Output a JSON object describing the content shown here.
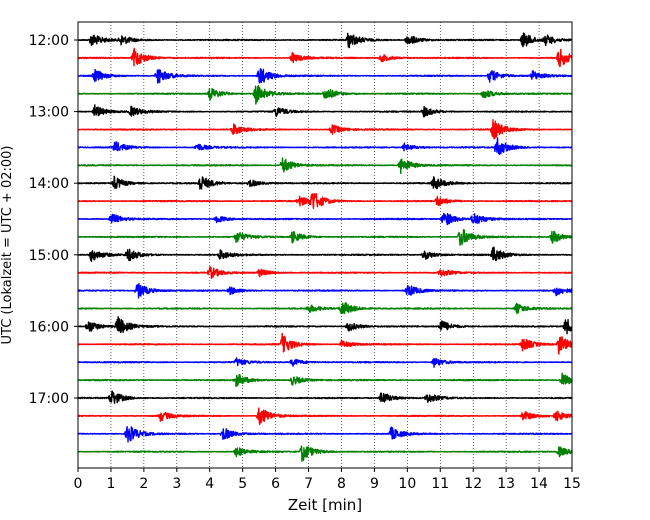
{
  "chart_data": {
    "type": "line",
    "title": "",
    "xlabel": "Zeit  [min]",
    "ylabel": "UTC (Lokalzeit = UTC + 02:00)",
    "xlim": [
      0,
      15
    ],
    "x_ticks": [
      0,
      1,
      2,
      3,
      4,
      5,
      6,
      7,
      8,
      9,
      10,
      11,
      12,
      13,
      14,
      15
    ],
    "grid": "vertical dotted",
    "legend": "none",
    "row_interval_minutes": 15,
    "y_ticks": [
      {
        "label": "12:00",
        "row": 0
      },
      {
        "label": "13:00",
        "row": 4
      },
      {
        "label": "14:00",
        "row": 8
      },
      {
        "label": "15:00",
        "row": 12
      },
      {
        "label": "16:00",
        "row": 16
      },
      {
        "label": "17:00",
        "row": 20
      }
    ],
    "colors": [
      "#000000",
      "#ff0000",
      "#0000ff",
      "#008000"
    ],
    "traces": [
      {
        "start": "12:00",
        "color": "#000000",
        "events": [
          [
            0.4,
            2.0
          ],
          [
            1.3,
            1.5
          ],
          [
            8.2,
            2.5
          ],
          [
            10.0,
            1.8
          ],
          [
            13.5,
            2.5
          ],
          [
            14.2,
            1.5
          ]
        ]
      },
      {
        "start": "12:15",
        "color": "#ff0000",
        "events": [
          [
            1.7,
            3.0
          ],
          [
            6.5,
            1.5
          ],
          [
            9.2,
            1.2
          ],
          [
            14.6,
            3.0
          ]
        ]
      },
      {
        "start": "12:30",
        "color": "#0000ff",
        "events": [
          [
            0.5,
            2.0
          ],
          [
            2.4,
            2.5
          ],
          [
            5.5,
            3.0
          ],
          [
            12.5,
            2.0
          ],
          [
            13.8,
            1.5
          ]
        ]
      },
      {
        "start": "12:45",
        "color": "#008000",
        "events": [
          [
            4.0,
            2.0
          ],
          [
            5.4,
            3.0
          ],
          [
            7.5,
            2.0
          ],
          [
            12.3,
            1.5
          ]
        ]
      },
      {
        "start": "13:00",
        "color": "#000000",
        "events": [
          [
            0.5,
            2.0
          ],
          [
            1.6,
            1.5
          ],
          [
            6.0,
            1.5
          ],
          [
            10.5,
            1.5
          ]
        ]
      },
      {
        "start": "13:15",
        "color": "#ff0000",
        "events": [
          [
            4.7,
            1.8
          ],
          [
            7.7,
            1.5
          ],
          [
            12.6,
            3.0
          ]
        ]
      },
      {
        "start": "13:30",
        "color": "#0000ff",
        "events": [
          [
            1.1,
            1.8
          ],
          [
            3.6,
            1.2
          ],
          [
            9.9,
            1.2
          ],
          [
            12.7,
            3.0
          ]
        ]
      },
      {
        "start": "13:45",
        "color": "#008000",
        "events": [
          [
            6.2,
            2.5
          ],
          [
            9.8,
            2.5
          ]
        ]
      },
      {
        "start": "14:00",
        "color": "#000000",
        "events": [
          [
            1.1,
            2.0
          ],
          [
            3.7,
            2.5
          ],
          [
            5.2,
            1.2
          ],
          [
            10.8,
            2.0
          ]
        ]
      },
      {
        "start": "14:15",
        "color": "#ff0000",
        "events": [
          [
            6.7,
            1.5
          ],
          [
            7.1,
            3.0
          ],
          [
            10.9,
            1.5
          ]
        ]
      },
      {
        "start": "14:30",
        "color": "#0000ff",
        "events": [
          [
            1.0,
            1.8
          ],
          [
            4.2,
            1.2
          ],
          [
            11.1,
            2.5
          ],
          [
            12.0,
            2.0
          ]
        ]
      },
      {
        "start": "14:45",
        "color": "#008000",
        "events": [
          [
            4.8,
            1.8
          ],
          [
            6.5,
            1.8
          ],
          [
            11.6,
            3.0
          ],
          [
            14.4,
            2.0
          ]
        ]
      },
      {
        "start": "15:00",
        "color": "#000000",
        "events": [
          [
            0.4,
            2.0
          ],
          [
            1.5,
            2.0
          ],
          [
            4.3,
            1.5
          ],
          [
            10.5,
            1.5
          ],
          [
            12.6,
            2.5
          ]
        ]
      },
      {
        "start": "15:15",
        "color": "#ff0000",
        "events": [
          [
            4.0,
            1.8
          ],
          [
            5.5,
            1.2
          ],
          [
            11.0,
            1.2
          ]
        ]
      },
      {
        "start": "15:30",
        "color": "#0000ff",
        "events": [
          [
            1.8,
            2.5
          ],
          [
            4.6,
            1.2
          ],
          [
            10.0,
            2.0
          ],
          [
            14.5,
            1.5
          ]
        ]
      },
      {
        "start": "15:45",
        "color": "#008000",
        "events": [
          [
            7.0,
            1.2
          ],
          [
            8.0,
            2.5
          ],
          [
            13.3,
            1.5
          ]
        ]
      },
      {
        "start": "16:00",
        "color": "#000000",
        "events": [
          [
            0.3,
            2.0
          ],
          [
            1.2,
            3.0
          ],
          [
            8.2,
            1.5
          ],
          [
            11.0,
            2.0
          ],
          [
            14.8,
            2.5
          ]
        ]
      },
      {
        "start": "16:15",
        "color": "#ff0000",
        "events": [
          [
            6.2,
            3.0
          ],
          [
            8.0,
            1.2
          ],
          [
            13.5,
            2.0
          ],
          [
            14.6,
            3.0
          ]
        ]
      },
      {
        "start": "16:30",
        "color": "#0000ff",
        "events": [
          [
            4.8,
            1.2
          ],
          [
            6.5,
            1.2
          ],
          [
            10.8,
            1.5
          ]
        ]
      },
      {
        "start": "16:45",
        "color": "#008000",
        "events": [
          [
            4.8,
            2.0
          ],
          [
            6.5,
            1.5
          ],
          [
            14.7,
            2.0
          ]
        ]
      },
      {
        "start": "17:00",
        "color": "#000000",
        "events": [
          [
            1.0,
            2.5
          ],
          [
            9.2,
            2.0
          ],
          [
            10.6,
            1.5
          ]
        ]
      },
      {
        "start": "17:15",
        "color": "#ff0000",
        "events": [
          [
            2.5,
            1.5
          ],
          [
            5.5,
            3.0
          ],
          [
            13.5,
            1.5
          ],
          [
            14.5,
            1.5
          ]
        ]
      },
      {
        "start": "17:30",
        "color": "#0000ff",
        "events": [
          [
            1.5,
            3.0
          ],
          [
            4.4,
            2.0
          ],
          [
            9.5,
            2.0
          ]
        ]
      },
      {
        "start": "17:45",
        "color": "#008000",
        "events": [
          [
            4.8,
            1.5
          ],
          [
            6.8,
            3.0
          ],
          [
            14.6,
            1.5
          ]
        ]
      }
    ]
  }
}
